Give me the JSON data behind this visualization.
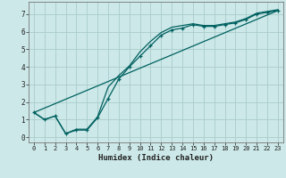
{
  "title": "",
  "xlabel": "Humidex (Indice chaleur)",
  "ylabel": "",
  "bg_color": "#cce8e8",
  "grid_color": "#aacccc",
  "line_color": "#006060",
  "xlim": [
    -0.5,
    23.5
  ],
  "ylim": [
    -0.3,
    7.7
  ],
  "xticks": [
    0,
    1,
    2,
    3,
    4,
    5,
    6,
    7,
    8,
    9,
    10,
    11,
    12,
    13,
    14,
    15,
    16,
    17,
    18,
    19,
    20,
    21,
    22,
    23
  ],
  "yticks": [
    0,
    1,
    2,
    3,
    4,
    5,
    6,
    7
  ],
  "line1_x": [
    0,
    1,
    2,
    3,
    4,
    5,
    6,
    7,
    8,
    9,
    10,
    11,
    12,
    13,
    14,
    15,
    16,
    17,
    18,
    19,
    20,
    21,
    22,
    23
  ],
  "line1_y": [
    1.4,
    1.0,
    1.2,
    0.2,
    0.4,
    0.4,
    1.1,
    2.2,
    3.3,
    4.0,
    4.6,
    5.2,
    5.8,
    6.1,
    6.2,
    6.4,
    6.3,
    6.3,
    6.4,
    6.5,
    6.7,
    7.0,
    7.1,
    7.2
  ],
  "line2_x": [
    0,
    1,
    2,
    3,
    4,
    5,
    6,
    7,
    8,
    9,
    10,
    11,
    12,
    13,
    14,
    15,
    16,
    17,
    18,
    19,
    20,
    21,
    22,
    23
  ],
  "line2_y": [
    1.4,
    1.0,
    1.2,
    0.2,
    0.45,
    0.45,
    1.15,
    2.85,
    3.5,
    4.05,
    4.85,
    5.45,
    5.95,
    6.25,
    6.35,
    6.45,
    6.35,
    6.35,
    6.45,
    6.55,
    6.75,
    7.05,
    7.15,
    7.25
  ],
  "line3_x": [
    0,
    23
  ],
  "line3_y": [
    1.4,
    7.2
  ]
}
